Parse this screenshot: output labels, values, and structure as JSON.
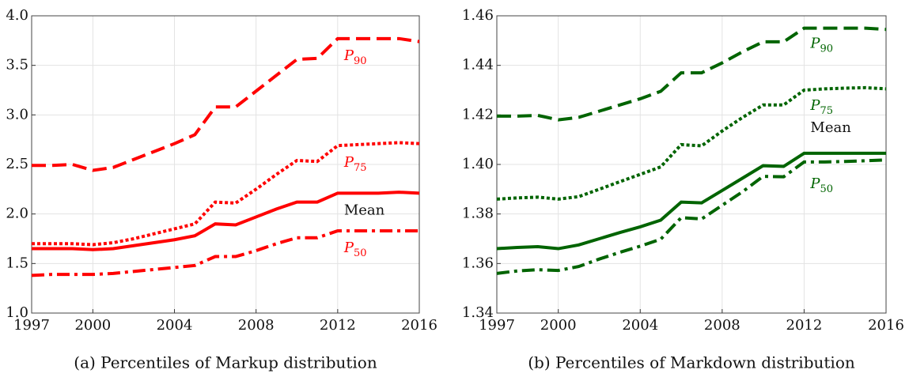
{
  "chart_data": [
    {
      "type": "line",
      "caption": "(a) Percentiles of Markup distribution",
      "x": [
        1997,
        1998,
        1999,
        2000,
        2001,
        2002,
        2003,
        2004,
        2005,
        2006,
        2007,
        2008,
        2009,
        2010,
        2011,
        2012,
        2013,
        2014,
        2015,
        2016
      ],
      "xlim": [
        1997,
        2016
      ],
      "xticks": [
        1997,
        2000,
        2004,
        2008,
        2012,
        2016
      ],
      "ylim": [
        1.0,
        4.0
      ],
      "yticks": [
        {
          "value": 1.0,
          "label": "1.0"
        },
        1.5,
        {
          "value": 2.0,
          "label": "2.0"
        },
        2.5,
        {
          "value": 3.0,
          "label": "3.0"
        },
        3.5,
        {
          "value": 4.0,
          "label": "4.0"
        }
      ],
      "grid": true,
      "series": [
        {
          "name": "P90",
          "color": "#ff0000",
          "style": "dashed",
          "values": [
            2.49,
            2.49,
            2.5,
            2.44,
            2.47,
            2.55,
            2.63,
            2.71,
            2.8,
            3.08,
            3.08,
            3.24,
            3.4,
            3.56,
            3.57,
            3.77,
            3.77,
            3.77,
            3.77,
            3.74
          ]
        },
        {
          "name": "P75",
          "color": "#ff0000",
          "style": "dotted",
          "values": [
            1.7,
            1.7,
            1.7,
            1.69,
            1.71,
            1.75,
            1.8,
            1.85,
            1.9,
            2.12,
            2.11,
            2.25,
            2.4,
            2.54,
            2.53,
            2.69,
            2.7,
            2.71,
            2.72,
            2.71
          ]
        },
        {
          "name": "Mean",
          "color": "#ff0000",
          "style": "solid",
          "values": [
            1.65,
            1.65,
            1.65,
            1.64,
            1.65,
            1.68,
            1.71,
            1.74,
            1.78,
            1.9,
            1.89,
            1.97,
            2.05,
            2.12,
            2.12,
            2.21,
            2.21,
            2.21,
            2.22,
            2.21
          ]
        },
        {
          "name": "P50",
          "color": "#ff0000",
          "style": "dashdot",
          "values": [
            1.38,
            1.39,
            1.39,
            1.39,
            1.4,
            1.42,
            1.44,
            1.46,
            1.48,
            1.57,
            1.57,
            1.63,
            1.7,
            1.76,
            1.76,
            1.83,
            1.83,
            1.83,
            1.83,
            1.83
          ]
        }
      ]
    },
    {
      "type": "line",
      "caption": "(b) Percentiles of Markdown distribution",
      "x": [
        1997,
        1998,
        1999,
        2000,
        2001,
        2002,
        2003,
        2004,
        2005,
        2006,
        2007,
        2008,
        2009,
        2010,
        2011,
        2012,
        2013,
        2014,
        2015,
        2016
      ],
      "xlim": [
        1997,
        2016
      ],
      "xticks": [
        1997,
        2000,
        2004,
        2008,
        2012,
        2016
      ],
      "ylim": [
        1.34,
        1.46
      ],
      "yticks": [
        1.34,
        1.36,
        1.38,
        {
          "value": 1.4,
          "label": "1.40"
        },
        1.42,
        1.44,
        1.46
      ],
      "grid": true,
      "series": [
        {
          "name": "P90",
          "color": "#006400",
          "style": "dashed",
          "values": [
            1.4195,
            1.4195,
            1.4198,
            1.418,
            1.419,
            1.4215,
            1.424,
            1.4265,
            1.4295,
            1.437,
            1.437,
            1.441,
            1.4455,
            1.4495,
            1.4495,
            1.455,
            1.455,
            1.455,
            1.455,
            1.4545
          ]
        },
        {
          "name": "P75",
          "color": "#006400",
          "style": "dotted",
          "values": [
            1.386,
            1.3865,
            1.3868,
            1.386,
            1.387,
            1.39,
            1.393,
            1.396,
            1.399,
            1.408,
            1.4075,
            1.4135,
            1.419,
            1.424,
            1.424,
            1.43,
            1.4305,
            1.4308,
            1.431,
            1.4305
          ]
        },
        {
          "name": "Mean",
          "color": "#006400",
          "style": "solid",
          "values": [
            1.366,
            1.3665,
            1.3668,
            1.366,
            1.3675,
            1.37,
            1.3725,
            1.3748,
            1.3775,
            1.3848,
            1.3845,
            1.3895,
            1.3945,
            1.3995,
            1.3992,
            1.4045,
            1.4045,
            1.4045,
            1.4045,
            1.4045
          ]
        },
        {
          "name": "P50",
          "color": "#006400",
          "style": "dashdot",
          "values": [
            1.356,
            1.357,
            1.3575,
            1.3572,
            1.3588,
            1.3618,
            1.3645,
            1.367,
            1.3698,
            1.3785,
            1.378,
            1.3835,
            1.389,
            1.3952,
            1.395,
            1.401,
            1.401,
            1.4012,
            1.4015,
            1.4018
          ]
        }
      ]
    }
  ]
}
